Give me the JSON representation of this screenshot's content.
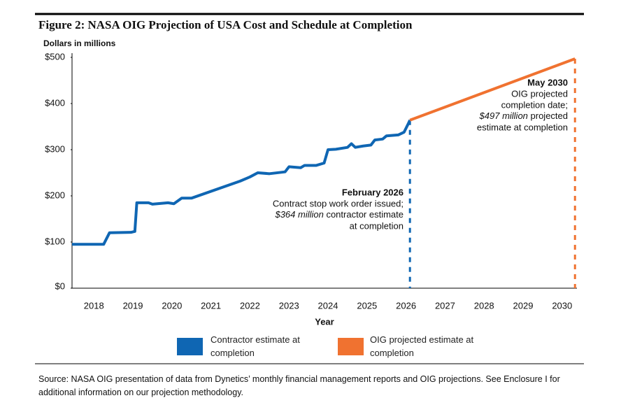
{
  "chart_data": {
    "type": "line",
    "title": "Figure 2: NASA OIG Projection of USA Cost and Schedule at Completion",
    "y_label": "Dollars in millions",
    "x_label": "Year",
    "xlim": [
      2017.44,
      2030.38
    ],
    "xticks": [
      2018,
      2019,
      2020,
      2021,
      2022,
      2023,
      2024,
      2025,
      2026,
      2027,
      2028,
      2029,
      2030
    ],
    "ylim": [
      0,
      500
    ],
    "yticks": [
      {
        "value": 0,
        "label": "$0"
      },
      {
        "value": 100,
        "label": "$100"
      },
      {
        "value": 200,
        "label": "$200"
      },
      {
        "value": 300,
        "label": "$300"
      },
      {
        "value": 400,
        "label": "$400"
      },
      {
        "value": 500,
        "label": "$500"
      }
    ],
    "series": [
      {
        "name": "Contractor estimate at completion",
        "color": "#0f66b3",
        "x": [
          2017.44,
          2018.25,
          2018.4,
          2018.95,
          2019.05,
          2019.1,
          2019.4,
          2019.5,
          2019.9,
          2020.05,
          2020.25,
          2020.5,
          2021.75,
          2022.0,
          2022.2,
          2022.5,
          2022.9,
          2023.0,
          2023.3,
          2023.4,
          2023.7,
          2023.9,
          2024.0,
          2024.2,
          2024.5,
          2024.6,
          2024.7,
          2024.9,
          2025.1,
          2025.2,
          2025.4,
          2025.5,
          2025.8,
          2025.95,
          2026.05,
          2026.1
        ],
        "values": [
          95,
          95,
          120,
          121,
          123,
          185,
          185,
          182,
          185,
          183,
          195,
          195,
          232,
          241,
          250,
          248,
          252,
          263,
          261,
          266,
          266,
          271,
          300,
          301,
          305,
          313,
          305,
          308,
          310,
          321,
          323,
          330,
          332,
          338,
          355,
          364
        ]
      },
      {
        "name": "OIG projected estimate at completion",
        "color": "#f07230",
        "x": [
          2026.1,
          2030.33
        ],
        "values": [
          364,
          497
        ]
      }
    ],
    "annotations": [
      {
        "title": "February 2026",
        "lines": [
          "Contract stop work order issued;",
          [
            "$364 million",
            " contractor estimate"
          ],
          "at completion"
        ]
      },
      {
        "title": "May 2030",
        "lines": [
          "OIG projected",
          "completion date;",
          [
            "$497 million",
            " projected"
          ],
          "estimate at completion"
        ]
      }
    ],
    "source": "Source: NASA OIG presentation of data from Dynetics’ monthly financial management reports and OIG projections. See Enclosure I for additional information on our projection methodology."
  }
}
